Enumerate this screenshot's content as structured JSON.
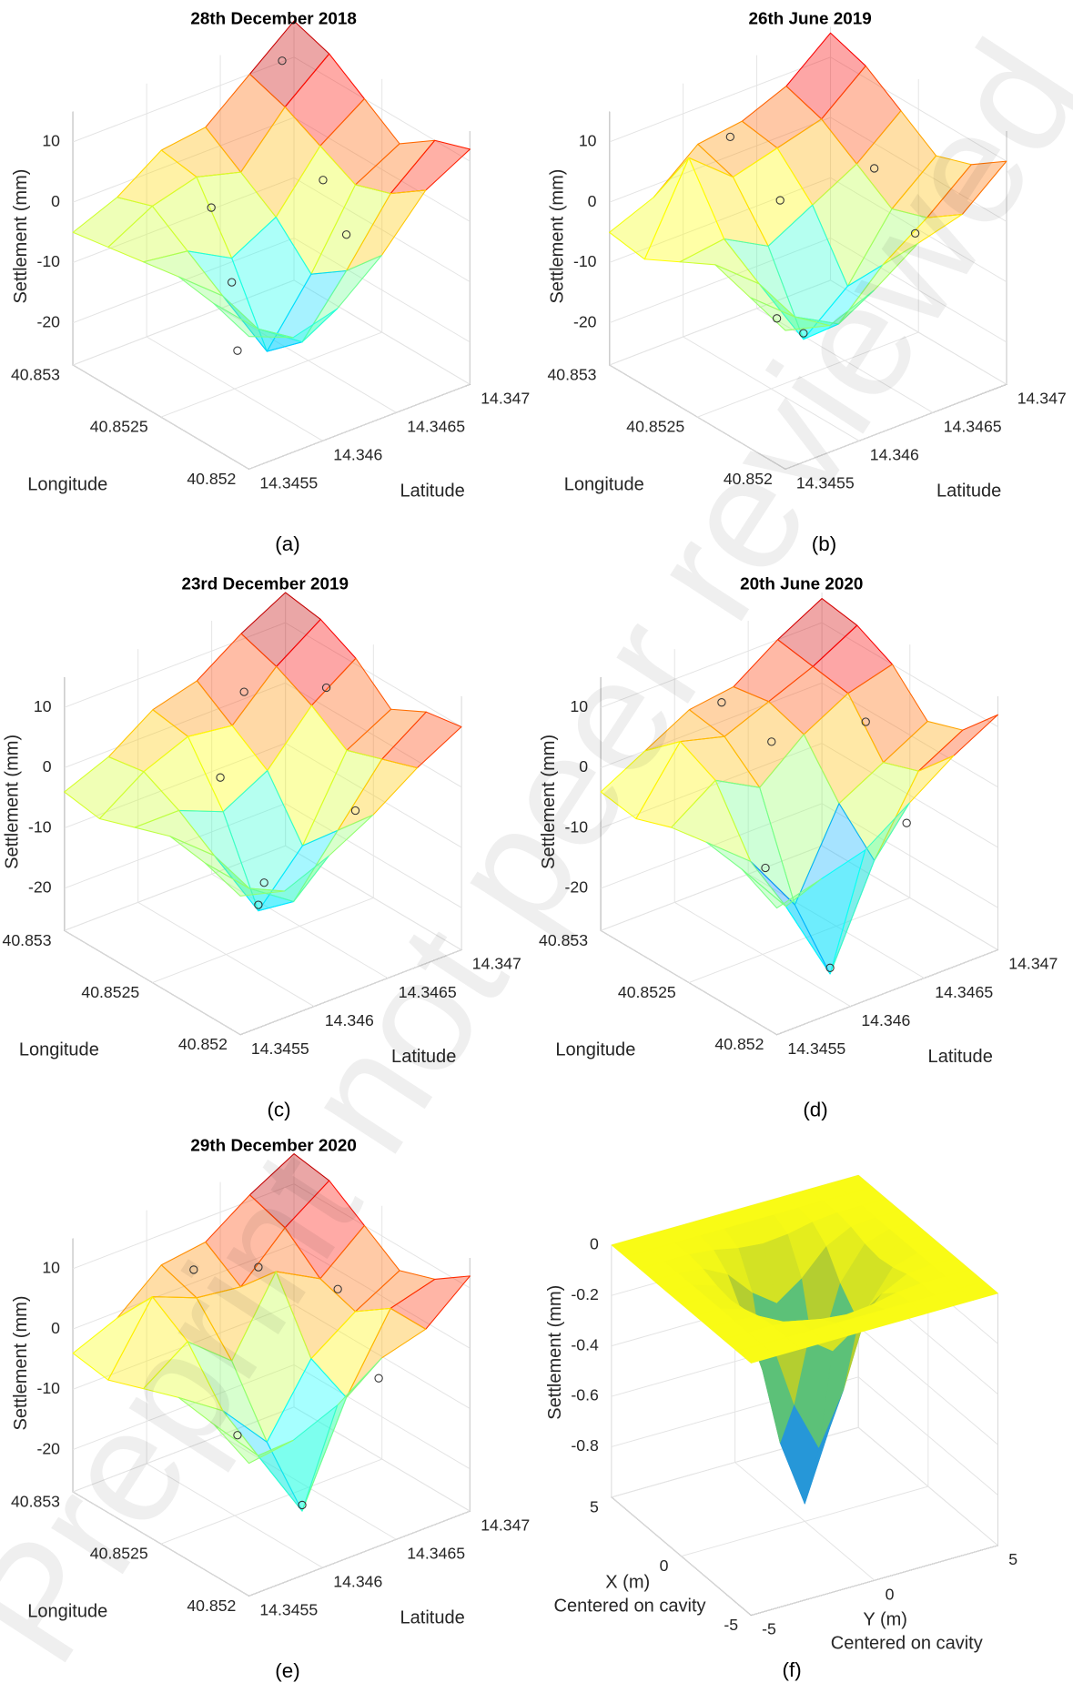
{
  "watermark": "Preprint not peer reviewed",
  "chart_data": [
    {
      "type": "surface3d",
      "title": "28th December 2018",
      "panel_label": "(a)",
      "colormap": "jet",
      "xlabel": "Longitude",
      "ylabel": "Latitude",
      "zlabel": "Settlement (mm)",
      "x": [
        40.852,
        40.8522,
        40.8524,
        40.8526,
        40.8528,
        40.853
      ],
      "y": [
        14.3455,
        14.3458,
        14.3461,
        14.3464,
        14.3467,
        14.347
      ],
      "z": [
        [
          -5,
          -8,
          -6,
          0,
          8,
          12
        ],
        [
          -3,
          -10,
          -15,
          -6,
          4,
          10
        ],
        [
          -2,
          -8,
          -20,
          -10,
          2,
          6
        ],
        [
          -3,
          -4,
          -8,
          -4,
          5,
          10
        ],
        [
          -4,
          0,
          2,
          0,
          8,
          14
        ],
        [
          -5,
          -2,
          3,
          4,
          10,
          16
        ]
      ],
      "points": {
        "x": [
          40.8524,
          40.8526,
          40.8528,
          40.8522,
          40.8525,
          40.8529
        ],
        "y": [
          14.3459,
          14.3461,
          14.3462,
          14.3464,
          14.3466,
          14.3468
        ],
        "z": [
          -18,
          -12,
          -4,
          0,
          2,
          13
        ]
      },
      "xlim": [
        40.852,
        40.853
      ],
      "ylim": [
        14.3455,
        14.347
      ],
      "zlim": [
        -27,
        15
      ],
      "xticks": [
        40.852,
        40.8525,
        40.853
      ],
      "yticks": [
        14.3455,
        14.346,
        14.3465,
        14.347
      ],
      "zticks": [
        -20,
        -10,
        0,
        10
      ]
    },
    {
      "type": "surface3d",
      "title": "26th June 2019",
      "panel_label": "(b)",
      "colormap": "jet",
      "xlabel": "Longitude",
      "ylabel": "Latitude",
      "zlabel": "Settlement (mm)",
      "x": [
        40.852,
        40.8522,
        40.8524,
        40.8526,
        40.8528,
        40.853
      ],
      "y": [
        14.3455,
        14.3458,
        14.3461,
        14.3464,
        14.3467,
        14.347
      ],
      "z": [
        [
          -4,
          -6,
          -3,
          2,
          4,
          10
        ],
        [
          -2,
          -8,
          -12,
          -5,
          0,
          6
        ],
        [
          0,
          -6,
          -18,
          -12,
          -2,
          4
        ],
        [
          -3,
          -2,
          -6,
          -2,
          2,
          8
        ],
        [
          -6,
          8,
          2,
          4,
          6,
          12
        ],
        [
          -5,
          -2,
          4,
          5,
          8,
          14
        ]
      ],
      "points": {
        "x": [
          40.8524,
          40.8523,
          40.8527,
          40.8529,
          40.8525,
          40.8521
        ],
        "y": [
          14.3461,
          14.3458,
          14.3463,
          14.3462,
          14.3467,
          14.3465
        ],
        "z": [
          -17,
          -10,
          -2,
          6,
          3,
          1
        ]
      },
      "xlim": [
        40.852,
        40.853
      ],
      "ylim": [
        14.3455,
        14.347
      ],
      "zlim": [
        -27,
        15
      ],
      "xticks": [
        40.852,
        40.8525,
        40.853
      ],
      "yticks": [
        14.3455,
        14.346,
        14.3465,
        14.347
      ],
      "zticks": [
        -20,
        -10,
        0,
        10
      ]
    },
    {
      "type": "surface3d",
      "title": "23rd December 2019",
      "panel_label": "(c)",
      "colormap": "jet",
      "xlabel": "Longitude",
      "ylabel": "Latitude",
      "zlabel": "Settlement (mm)",
      "x": [
        40.852,
        40.8522,
        40.8524,
        40.8526,
        40.8528,
        40.853
      ],
      "y": [
        14.3455,
        14.3458,
        14.3461,
        14.3464,
        14.3467,
        14.347
      ],
      "z": [
        [
          -4,
          -6,
          -3,
          1,
          6,
          10
        ],
        [
          -2,
          -9,
          -14,
          -5,
          4,
          9
        ],
        [
          -1,
          -7,
          -19,
          -11,
          2,
          6
        ],
        [
          -3,
          -3,
          -6,
          -2,
          6,
          11
        ],
        [
          -5,
          0,
          3,
          2,
          9,
          14
        ],
        [
          -4,
          -1,
          4,
          6,
          11,
          15
        ]
      ],
      "points": {
        "x": [
          40.8524,
          40.8522,
          40.8527,
          40.8529,
          40.8526,
          40.8521
        ],
        "y": [
          14.3461,
          14.3459,
          14.3462,
          14.3466,
          14.3468,
          14.3464
        ],
        "z": [
          -18,
          -9,
          -3,
          4,
          8,
          0
        ]
      },
      "xlim": [
        40.852,
        40.853
      ],
      "ylim": [
        14.3455,
        14.347
      ],
      "zlim": [
        -27,
        15
      ],
      "xticks": [
        40.852,
        40.8525,
        40.853
      ],
      "yticks": [
        14.3455,
        14.346,
        14.3465,
        14.347
      ],
      "zticks": [
        -20,
        -10,
        0,
        10
      ]
    },
    {
      "type": "surface3d",
      "title": "20th June 2020",
      "panel_label": "(d)",
      "colormap": "jet",
      "xlabel": "Longitude",
      "ylabel": "Latitude",
      "zlabel": "Settlement (mm)",
      "x": [
        40.852,
        40.8522,
        40.8524,
        40.8526,
        40.8528,
        40.853
      ],
      "y": [
        14.3455,
        14.3458,
        14.3461,
        14.3464,
        14.3467,
        14.347
      ],
      "z": [
        [
          -6,
          -4,
          -2,
          3,
          8,
          12
        ],
        [
          -3,
          -12,
          -26,
          -10,
          2,
          6
        ],
        [
          -2,
          -8,
          -18,
          -4,
          0,
          4
        ],
        [
          -3,
          2,
          -2,
          4,
          8,
          10
        ],
        [
          -5,
          5,
          3,
          6,
          9,
          13
        ],
        [
          -4,
          0,
          4,
          5,
          10,
          14
        ]
      ],
      "points": {
        "x": [
          40.8522,
          40.8524,
          40.8527,
          40.8529,
          40.8525,
          40.8521
        ],
        "y": [
          14.3461,
          14.3459,
          14.3463,
          14.3462,
          14.3467,
          14.3465
        ],
        "z": [
          -25,
          -10,
          2,
          6,
          5,
          -3
        ]
      },
      "xlim": [
        40.852,
        40.853
      ],
      "ylim": [
        14.3455,
        14.347
      ],
      "zlim": [
        -27,
        15
      ],
      "xticks": [
        40.852,
        40.8525,
        40.853
      ],
      "yticks": [
        14.3455,
        14.346,
        14.3465,
        14.347
      ],
      "zticks": [
        -20,
        -10,
        0,
        10
      ]
    },
    {
      "type": "surface3d",
      "title": "29th December 2020",
      "panel_label": "(e)",
      "colormap": "jet",
      "xlabel": "Longitude",
      "ylabel": "Latitude",
      "zlabel": "Settlement (mm)",
      "x": [
        40.852,
        40.8522,
        40.8524,
        40.8526,
        40.8528,
        40.853
      ],
      "y": [
        14.3455,
        14.3458,
        14.3461,
        14.3464,
        14.3467,
        14.347
      ],
      "z": [
        [
          -5,
          -4,
          -1,
          4,
          6,
          12
        ],
        [
          -2,
          -10,
          -22,
          -6,
          6,
          8
        ],
        [
          -1,
          -6,
          -14,
          -3,
          2,
          6
        ],
        [
          -3,
          2,
          -4,
          8,
          4,
          10
        ],
        [
          -5,
          6,
          3,
          2,
          9,
          14
        ],
        [
          -4,
          -1,
          5,
          6,
          11,
          15
        ]
      ],
      "points": {
        "x": [
          40.8522,
          40.8524,
          40.8527,
          40.8529,
          40.8525,
          40.8521
        ],
        "y": [
          14.3461,
          14.3459,
          14.3464,
          14.3462,
          14.3467,
          14.3465
        ],
        "z": [
          -21,
          -11,
          7,
          5,
          4,
          -2
        ]
      },
      "xlim": [
        40.852,
        40.853
      ],
      "ylim": [
        14.3455,
        14.347
      ],
      "zlim": [
        -27,
        15
      ],
      "xticks": [
        40.852,
        40.8525,
        40.853
      ],
      "yticks": [
        14.3455,
        14.346,
        14.3465,
        14.347
      ],
      "zticks": [
        -20,
        -10,
        0,
        10
      ]
    },
    {
      "type": "surface3d",
      "panel_label": "(f)",
      "colormap": "parula",
      "xlabel": [
        "X (m)",
        "Centered on cavity"
      ],
      "ylabel": [
        "Y (m)",
        "Centered on cavity"
      ],
      "zlabel": "Settlement (mm)",
      "x": [
        -5,
        -4,
        -3,
        -2,
        -1,
        0,
        1,
        2,
        3,
        4,
        5
      ],
      "y": [
        -5,
        -4,
        -3,
        -2,
        -1,
        0,
        1,
        2,
        3,
        4,
        5
      ],
      "z": [
        [
          0,
          0,
          0,
          0,
          0,
          0,
          0,
          0,
          0,
          0,
          0
        ],
        [
          0,
          0,
          0,
          0,
          0,
          0,
          0,
          0,
          0,
          0,
          0
        ],
        [
          0,
          0,
          0,
          -0.01,
          -0.03,
          -0.04,
          -0.03,
          -0.01,
          0,
          0,
          0
        ],
        [
          0,
          0,
          -0.01,
          -0.06,
          -0.16,
          -0.23,
          -0.16,
          -0.06,
          -0.01,
          0,
          0
        ],
        [
          0,
          0,
          -0.03,
          -0.16,
          -0.46,
          -0.66,
          -0.46,
          -0.16,
          -0.03,
          0,
          0
        ],
        [
          0,
          0,
          -0.04,
          -0.23,
          -0.66,
          -0.93,
          -0.66,
          -0.23,
          -0.04,
          0,
          0
        ],
        [
          0,
          0,
          -0.03,
          -0.16,
          -0.46,
          -0.66,
          -0.46,
          -0.16,
          -0.03,
          0,
          0
        ],
        [
          0,
          0,
          -0.01,
          -0.06,
          -0.16,
          -0.23,
          -0.16,
          -0.06,
          -0.01,
          0,
          0
        ],
        [
          0,
          0,
          0,
          -0.01,
          -0.03,
          -0.04,
          -0.03,
          -0.01,
          0,
          0,
          0
        ],
        [
          0,
          0,
          0,
          0,
          0,
          0,
          0,
          0,
          0,
          0,
          0
        ],
        [
          0,
          0,
          0,
          0,
          0,
          0,
          0,
          0,
          0,
          0,
          0
        ]
      ],
      "xlim": [
        -5,
        5
      ],
      "ylim": [
        -5,
        5
      ],
      "zlim": [
        -1,
        0
      ],
      "xticks": [
        -5,
        0,
        5
      ],
      "yticks": [
        -5,
        0,
        5
      ],
      "zticks": [
        -0.8,
        -0.6,
        -0.4,
        -0.2,
        0
      ]
    }
  ]
}
